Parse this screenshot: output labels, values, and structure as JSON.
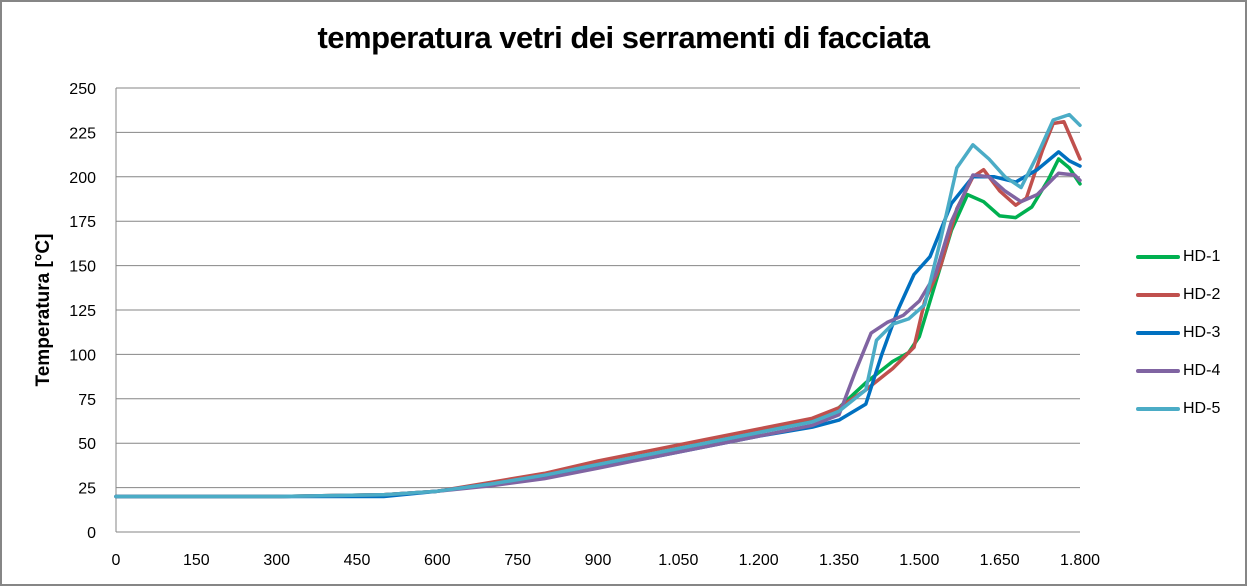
{
  "chart_data": {
    "type": "line",
    "title": "temperatura vetri dei serramenti di facciata",
    "xlabel": "",
    "ylabel": "Temperatura [°C]",
    "xlim": [
      0,
      1800
    ],
    "ylim": [
      0,
      250
    ],
    "grid": "horizontal major",
    "legend_position": "right",
    "x_ticks": [
      "0",
      "150",
      "300",
      "450",
      "600",
      "750",
      "900",
      "1.050",
      "1.200",
      "1.350",
      "1.500",
      "1.650",
      "1.800"
    ],
    "y_ticks": [
      "0",
      "25",
      "50",
      "75",
      "100",
      "125",
      "150",
      "175",
      "200",
      "225",
      "250"
    ],
    "series": [
      {
        "name": "HD-1",
        "color": "#00B050",
        "x": [
          0,
          300,
          500,
          600,
          700,
          800,
          900,
          1000,
          1100,
          1200,
          1300,
          1350,
          1400,
          1450,
          1480,
          1500,
          1530,
          1560,
          1590,
          1620,
          1650,
          1680,
          1710,
          1740,
          1760,
          1780,
          1800
        ],
        "y": [
          20,
          20,
          21,
          23,
          27,
          32,
          38,
          44,
          50,
          56,
          63,
          70,
          84,
          96,
          101,
          110,
          140,
          170,
          190,
          186,
          178,
          177,
          183,
          198,
          210,
          205,
          196
        ]
      },
      {
        "name": "HD-2",
        "color": "#C0504D",
        "x": [
          0,
          300,
          500,
          600,
          700,
          800,
          900,
          1000,
          1100,
          1200,
          1300,
          1350,
          1400,
          1450,
          1490,
          1510,
          1540,
          1570,
          1600,
          1620,
          1650,
          1680,
          1700,
          1730,
          1750,
          1770,
          1800
        ],
        "y": [
          20,
          20,
          21,
          23,
          28,
          33,
          40,
          46,
          52,
          58,
          64,
          70,
          80,
          92,
          104,
          130,
          150,
          182,
          200,
          204,
          192,
          184,
          188,
          215,
          230,
          231,
          210
        ]
      },
      {
        "name": "HD-3",
        "color": "#0070C0",
        "x": [
          0,
          300,
          500,
          600,
          700,
          800,
          900,
          1000,
          1100,
          1200,
          1300,
          1350,
          1400,
          1430,
          1460,
          1490,
          1520,
          1560,
          1600,
          1640,
          1680,
          1720,
          1760,
          1780,
          1800
        ],
        "y": [
          20,
          20,
          20,
          23,
          27,
          31,
          37,
          42,
          48,
          54,
          59,
          63,
          72,
          100,
          125,
          145,
          155,
          185,
          200,
          200,
          197,
          204,
          214,
          209,
          206
        ]
      },
      {
        "name": "HD-4",
        "color": "#8064A2",
        "x": [
          0,
          300,
          500,
          600,
          700,
          800,
          900,
          1000,
          1100,
          1200,
          1300,
          1350,
          1380,
          1410,
          1440,
          1470,
          1500,
          1530,
          1560,
          1600,
          1630,
          1660,
          1690,
          1720,
          1760,
          1790,
          1800
        ],
        "y": [
          20,
          20,
          21,
          23,
          26,
          30,
          36,
          42,
          48,
          54,
          60,
          66,
          90,
          112,
          118,
          122,
          130,
          145,
          175,
          201,
          200,
          192,
          186,
          190,
          202,
          201,
          198
        ]
      },
      {
        "name": "HD-5",
        "color": "#4BACC6",
        "x": [
          0,
          300,
          500,
          600,
          700,
          800,
          900,
          1000,
          1100,
          1200,
          1300,
          1350,
          1400,
          1420,
          1450,
          1480,
          1510,
          1540,
          1570,
          1600,
          1630,
          1660,
          1690,
          1720,
          1750,
          1780,
          1800
        ],
        "y": [
          20,
          20,
          21,
          23,
          27,
          32,
          38,
          44,
          50,
          56,
          62,
          68,
          80,
          108,
          117,
          120,
          128,
          165,
          205,
          218,
          210,
          200,
          194,
          212,
          232,
          235,
          229
        ]
      }
    ]
  },
  "page": {
    "title": "temperatura vetri dei serramenti di facciata",
    "ylabel": "Temperatura [°C]",
    "legend": [
      "HD-1",
      "HD-2",
      "HD-3",
      "HD-4",
      "HD-5"
    ]
  }
}
